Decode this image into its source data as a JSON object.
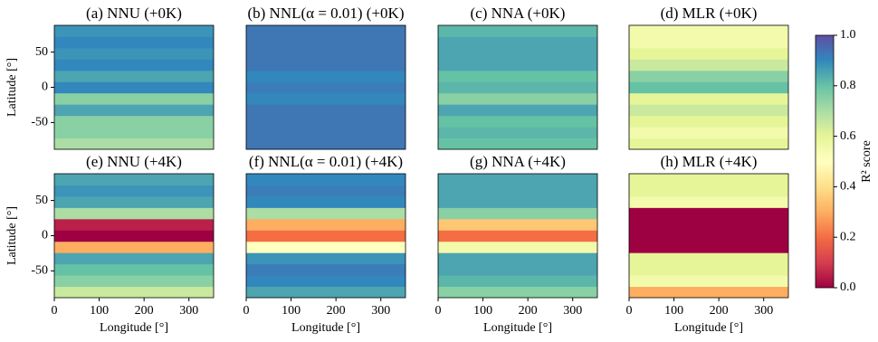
{
  "chart_data": [
    {
      "type": "heatmap",
      "title": "(a)  NNU  (+0K)",
      "ylabel": "Latitude [°]",
      "xlim": [
        0,
        355
      ],
      "ylim": [
        -88,
        88
      ],
      "yticks": [
        -50,
        0,
        50
      ],
      "y_bins": [
        -88,
        -72,
        -56,
        -40,
        -24,
        -8,
        8,
        24,
        40,
        56,
        72,
        88
      ],
      "values": [
        0.7,
        0.75,
        0.75,
        0.85,
        0.75,
        0.9,
        0.85,
        0.9,
        0.88,
        0.9,
        0.88
      ]
    },
    {
      "type": "heatmap",
      "title": "(b)  NNL(α = 0.01)  (+0K)",
      "xlim": [
        0,
        355
      ],
      "ylim": [
        -88,
        88
      ],
      "y_bins": [
        -88,
        -72,
        -56,
        -40,
        -24,
        -8,
        8,
        24,
        40,
        56,
        72,
        88
      ],
      "values": [
        0.93,
        0.93,
        0.93,
        0.93,
        0.9,
        0.92,
        0.9,
        0.93,
        0.93,
        0.93,
        0.93
      ]
    },
    {
      "type": "heatmap",
      "title": "(c)  NNA  (+0K)",
      "xlim": [
        0,
        355
      ],
      "ylim": [
        -88,
        88
      ],
      "y_bins": [
        -88,
        -72,
        -56,
        -40,
        -24,
        -8,
        8,
        24,
        40,
        56,
        72,
        88
      ],
      "values": [
        0.8,
        0.82,
        0.8,
        0.85,
        0.75,
        0.82,
        0.8,
        0.85,
        0.85,
        0.85,
        0.82
      ]
    },
    {
      "type": "heatmap",
      "title": "(d)  MLR  (+0K)",
      "xlim": [
        0,
        355
      ],
      "ylim": [
        -88,
        88
      ],
      "y_bins": [
        -88,
        -72,
        -56,
        -40,
        -24,
        -8,
        8,
        24,
        40,
        56,
        72,
        88
      ],
      "values": [
        0.6,
        0.55,
        0.6,
        0.65,
        0.6,
        0.8,
        0.75,
        0.65,
        0.6,
        0.55,
        0.55
      ]
    },
    {
      "type": "heatmap",
      "title": "(e)  NNU  (+4K)",
      "xlabel": "Longitude [°]",
      "ylabel": "Latitude [°]",
      "xlim": [
        0,
        355
      ],
      "ylim": [
        -88,
        88
      ],
      "xticks": [
        0,
        100,
        200,
        300
      ],
      "yticks": [
        -50,
        0,
        50
      ],
      "y_bins": [
        -88,
        -72,
        -56,
        -40,
        -24,
        -8,
        8,
        24,
        40,
        56,
        72,
        88
      ],
      "values": [
        0.65,
        0.75,
        0.8,
        0.85,
        0.3,
        0.0,
        0.05,
        0.7,
        0.85,
        0.88,
        0.85
      ]
    },
    {
      "type": "heatmap",
      "title": "(f)  NNL(α = 0.01)  (+4K)",
      "xlabel": "Longitude [°]",
      "xlim": [
        0,
        355
      ],
      "ylim": [
        -88,
        88
      ],
      "xticks": [
        0,
        100,
        200,
        300
      ],
      "y_bins": [
        -88,
        -72,
        -56,
        -40,
        -24,
        -8,
        8,
        24,
        40,
        56,
        72,
        88
      ],
      "values": [
        0.85,
        0.9,
        0.92,
        0.88,
        0.5,
        0.2,
        0.3,
        0.7,
        0.9,
        0.92,
        0.9
      ]
    },
    {
      "type": "heatmap",
      "title": "(g)  NNA  (+4K)",
      "xlabel": "Longitude [°]",
      "xlim": [
        0,
        355
      ],
      "ylim": [
        -88,
        88
      ],
      "xticks": [
        0,
        100,
        200,
        300
      ],
      "y_bins": [
        -88,
        -72,
        -56,
        -40,
        -24,
        -8,
        8,
        24,
        40,
        56,
        72,
        88
      ],
      "values": [
        0.75,
        0.82,
        0.85,
        0.85,
        0.55,
        0.2,
        0.35,
        0.75,
        0.85,
        0.85,
        0.85
      ]
    },
    {
      "type": "heatmap",
      "title": "(h)  MLR  (+4K)",
      "xlabel": "Longitude [°]",
      "xlim": [
        0,
        355
      ],
      "ylim": [
        -88,
        88
      ],
      "xticks": [
        0,
        100,
        200,
        300
      ],
      "y_bins": [
        -88,
        -72,
        -56,
        -40,
        -24,
        -8,
        8,
        24,
        40,
        56,
        72,
        88
      ],
      "values": [
        0.3,
        0.55,
        0.6,
        0.6,
        0.0,
        0.0,
        0.0,
        0.0,
        0.55,
        0.6,
        0.6
      ]
    },
    {
      "type": "colorbar",
      "label": "R² score",
      "clim": [
        0,
        1
      ],
      "ticks": [
        {
          "value": 0,
          "label": "0.0"
        },
        {
          "value": 0.2,
          "label": "0.2"
        },
        {
          "value": 0.4,
          "label": "0.4"
        },
        {
          "value": 0.6,
          "label": "0.6"
        },
        {
          "value": 0.8,
          "label": "0.8"
        },
        {
          "value": 1,
          "label": "1.0"
        }
      ],
      "colors": [
        "#9e0142",
        "#d53e4f",
        "#f46d43",
        "#fdae61",
        "#fee08b",
        "#ffffbf",
        "#e6f598",
        "#abdda4",
        "#66c2a5",
        "#3288bd",
        "#5e4fa2"
      ]
    }
  ]
}
